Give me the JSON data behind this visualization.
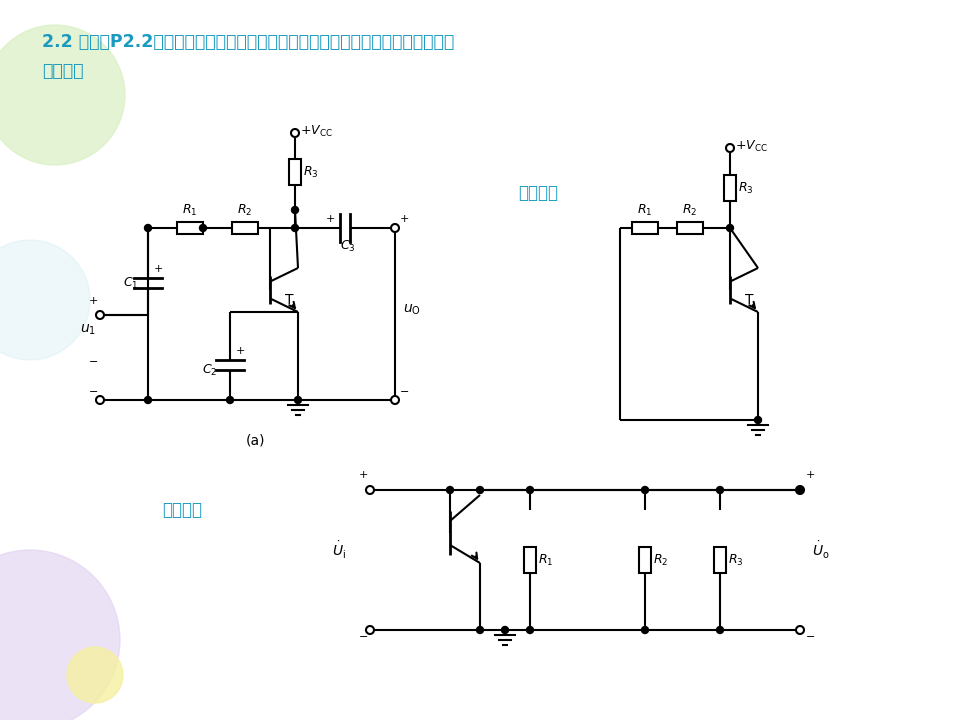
{
  "bg_color": "#ffffff",
  "title_line1": "2.2 画出图P2.2所示各电路的直流通路和交流通路。设所有电容对交流信号均可视",
  "title_line2": "为短路。",
  "label_dc": "直流通路",
  "label_ac": "交流通路",
  "label_a": "(a)",
  "cyan_color": "#1a9abf"
}
